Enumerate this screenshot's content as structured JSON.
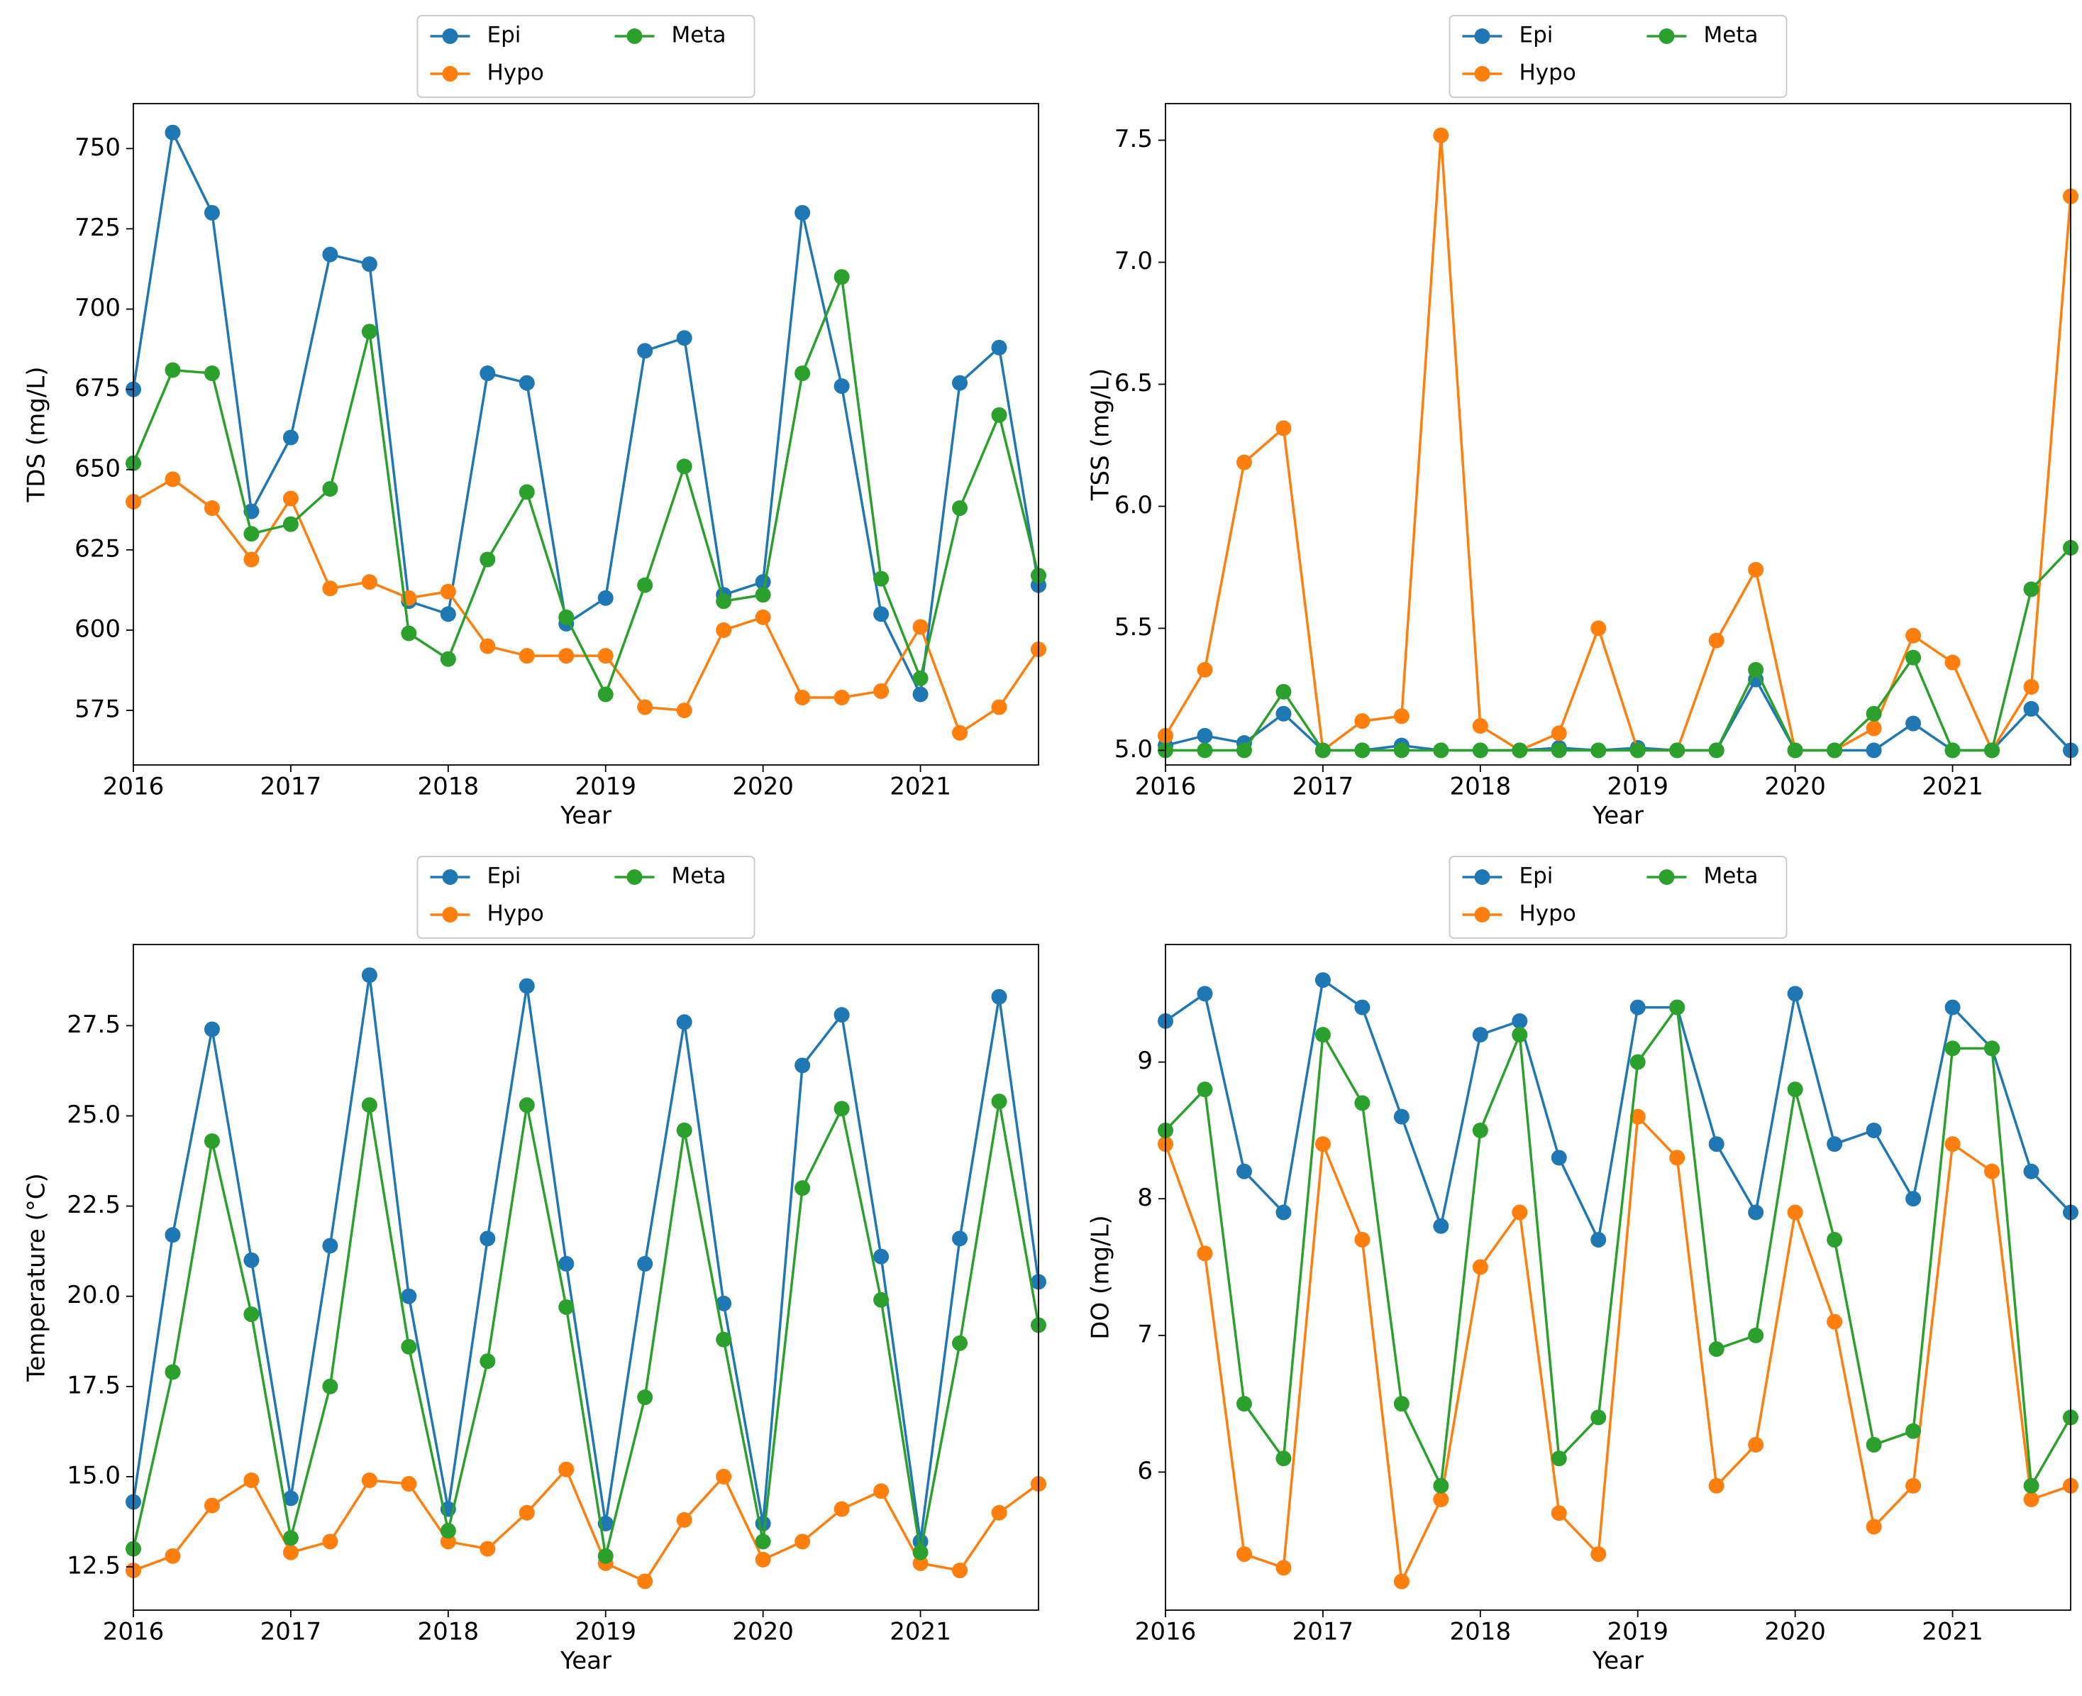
{
  "chart_data": [
    {
      "type": "line",
      "xlabel": "Year",
      "ylabel": "TDS (mg/L)",
      "x": [
        2016,
        2016.25,
        2016.5,
        2016.75,
        2017,
        2017.25,
        2017.5,
        2017.75,
        2018,
        2018.25,
        2018.5,
        2018.75,
        2019,
        2019.25,
        2019.5,
        2019.75,
        2020,
        2020.25,
        2020.5,
        2020.75,
        2021,
        2021.25,
        2021.5,
        2021.75
      ],
      "xlim": [
        2016,
        2021.75
      ],
      "xticks": [
        2016,
        2017,
        2018,
        2019,
        2020,
        2021
      ],
      "ylim": [
        558,
        764
      ],
      "yticks": [
        575,
        600,
        625,
        650,
        675,
        700,
        725,
        750
      ],
      "series": [
        {
          "name": "Epi",
          "color": "#1f77b4",
          "values": [
            675,
            755,
            730,
            637,
            660,
            717,
            714,
            609,
            605,
            680,
            677,
            602,
            610,
            687,
            691,
            611,
            615,
            730,
            676,
            605,
            580,
            677,
            688,
            614
          ]
        },
        {
          "name": "Hypo",
          "color": "#ff7f0e",
          "values": [
            640,
            647,
            638,
            622,
            641,
            613,
            615,
            610,
            612,
            595,
            592,
            592,
            592,
            576,
            575,
            600,
            604,
            579,
            579,
            581,
            601,
            568,
            576,
            594
          ]
        },
        {
          "name": "Meta",
          "color": "#2ca02c",
          "values": [
            652,
            681,
            680,
            630,
            633,
            644,
            693,
            599,
            591,
            622,
            643,
            604,
            580,
            614,
            651,
            609,
            611,
            680,
            710,
            616,
            585,
            638,
            667,
            617
          ]
        }
      ]
    },
    {
      "type": "line",
      "xlabel": "Year",
      "ylabel": "TSS (mg/L)",
      "x": [
        2016,
        2016.25,
        2016.5,
        2016.75,
        2017,
        2017.25,
        2017.5,
        2017.75,
        2018,
        2018.25,
        2018.5,
        2018.75,
        2019,
        2019.25,
        2019.5,
        2019.75,
        2020,
        2020.25,
        2020.5,
        2020.75,
        2021,
        2021.25,
        2021.5,
        2021.75
      ],
      "xlim": [
        2016,
        2021.75
      ],
      "xticks": [
        2016,
        2017,
        2018,
        2019,
        2020,
        2021
      ],
      "ylim": [
        4.94,
        7.65
      ],
      "yticks": [
        {
          "value": 5,
          "label": "5.0"
        },
        5.5,
        {
          "value": 6,
          "label": "6.0"
        },
        6.5,
        {
          "value": 7,
          "label": "7.0"
        },
        7.5
      ],
      "series": [
        {
          "name": "Epi",
          "color": "#1f77b4",
          "values": [
            5.02,
            5.06,
            5.03,
            5.15,
            5.0,
            5.0,
            5.02,
            5.0,
            5.0,
            5.0,
            5.01,
            5.0,
            5.01,
            5.0,
            5.0,
            5.29,
            5.0,
            5.0,
            5.0,
            5.11,
            5.0,
            5.0,
            5.17,
            5.0
          ]
        },
        {
          "name": "Hypo",
          "color": "#ff7f0e",
          "values": [
            5.06,
            5.33,
            6.18,
            6.32,
            5.0,
            5.12,
            5.14,
            7.52,
            5.1,
            5.0,
            5.07,
            5.5,
            5.0,
            5.0,
            5.45,
            5.74,
            5.0,
            5.0,
            5.09,
            5.47,
            5.36,
            5.0,
            5.26,
            7.27
          ]
        },
        {
          "name": "Meta",
          "color": "#2ca02c",
          "values": [
            5.0,
            5.0,
            5.0,
            5.24,
            5.0,
            5.0,
            5.0,
            5.0,
            5.0,
            5.0,
            5.0,
            5.0,
            5.0,
            5.0,
            5.0,
            5.33,
            5.0,
            5.0,
            5.15,
            5.38,
            5.0,
            5.0,
            5.66,
            5.83
          ]
        }
      ]
    },
    {
      "type": "line",
      "xlabel": "Year",
      "ylabel": "Temperature (°C)",
      "x": [
        2016,
        2016.25,
        2016.5,
        2016.75,
        2017,
        2017.25,
        2017.5,
        2017.75,
        2018,
        2018.25,
        2018.5,
        2018.75,
        2019,
        2019.25,
        2019.5,
        2019.75,
        2020,
        2020.25,
        2020.5,
        2020.75,
        2021,
        2021.25,
        2021.5,
        2021.75
      ],
      "xlim": [
        2016,
        2021.75
      ],
      "xticks": [
        2016,
        2017,
        2018,
        2019,
        2020,
        2021
      ],
      "ylim": [
        11.3,
        29.75
      ],
      "yticks": [
        12.5,
        {
          "value": 15,
          "label": "15.0"
        },
        17.5,
        {
          "value": 20,
          "label": "20.0"
        },
        22.5,
        {
          "value": 25,
          "label": "25.0"
        },
        27.5
      ],
      "series": [
        {
          "name": "Epi",
          "color": "#1f77b4",
          "values": [
            14.3,
            21.7,
            27.4,
            21.0,
            14.4,
            21.4,
            28.9,
            20.0,
            14.1,
            21.6,
            28.6,
            20.9,
            13.7,
            20.9,
            27.6,
            19.8,
            13.7,
            26.4,
            27.8,
            21.1,
            13.2,
            21.6,
            28.3,
            20.4
          ]
        },
        {
          "name": "Hypo",
          "color": "#ff7f0e",
          "values": [
            12.4,
            12.8,
            14.2,
            14.9,
            12.9,
            13.2,
            14.9,
            14.8,
            13.2,
            13.0,
            14.0,
            15.2,
            12.6,
            12.1,
            13.8,
            15.0,
            12.7,
            13.2,
            14.1,
            14.6,
            12.6,
            12.4,
            14.0,
            14.8
          ]
        },
        {
          "name": "Meta",
          "color": "#2ca02c",
          "values": [
            13.0,
            17.9,
            24.3,
            19.5,
            13.3,
            17.5,
            25.3,
            18.6,
            13.5,
            18.2,
            25.3,
            19.7,
            12.8,
            17.2,
            24.6,
            18.8,
            13.2,
            23.0,
            25.2,
            19.9,
            12.9,
            18.7,
            25.4,
            19.2
          ]
        }
      ]
    },
    {
      "type": "line",
      "xlabel": "Year",
      "ylabel": "DO (mg/L)",
      "x": [
        2016,
        2016.25,
        2016.5,
        2016.75,
        2017,
        2017.25,
        2017.5,
        2017.75,
        2018,
        2018.25,
        2018.5,
        2018.75,
        2019,
        2019.25,
        2019.5,
        2019.75,
        2020,
        2020.25,
        2020.5,
        2020.75,
        2021,
        2021.25,
        2021.5,
        2021.75
      ],
      "xlim": [
        2016,
        2021.75
      ],
      "xticks": [
        2016,
        2017,
        2018,
        2019,
        2020,
        2021
      ],
      "ylim": [
        4.99,
        9.86
      ],
      "yticks": [
        6,
        7,
        8,
        9
      ],
      "series": [
        {
          "name": "Epi",
          "color": "#1f77b4",
          "values": [
            9.3,
            9.5,
            8.2,
            7.9,
            9.6,
            9.4,
            8.6,
            7.8,
            9.2,
            9.3,
            8.3,
            7.7,
            9.4,
            9.4,
            8.4,
            7.9,
            9.5,
            8.4,
            8.5,
            8.0,
            9.4,
            9.1,
            8.2,
            7.9
          ]
        },
        {
          "name": "Hypo",
          "color": "#ff7f0e",
          "values": [
            8.4,
            7.6,
            5.4,
            5.3,
            8.4,
            7.7,
            5.2,
            5.8,
            7.5,
            7.9,
            5.7,
            5.4,
            8.6,
            8.3,
            5.9,
            6.2,
            7.9,
            7.1,
            5.6,
            5.9,
            8.4,
            8.2,
            5.8,
            5.9
          ]
        },
        {
          "name": "Meta",
          "color": "#2ca02c",
          "values": [
            8.5,
            8.8,
            6.5,
            6.1,
            9.2,
            8.7,
            6.5,
            5.9,
            8.5,
            9.2,
            6.1,
            6.4,
            9.0,
            9.4,
            6.9,
            7.0,
            8.8,
            7.7,
            6.2,
            6.3,
            9.1,
            9.1,
            5.9,
            6.4
          ]
        }
      ]
    }
  ]
}
